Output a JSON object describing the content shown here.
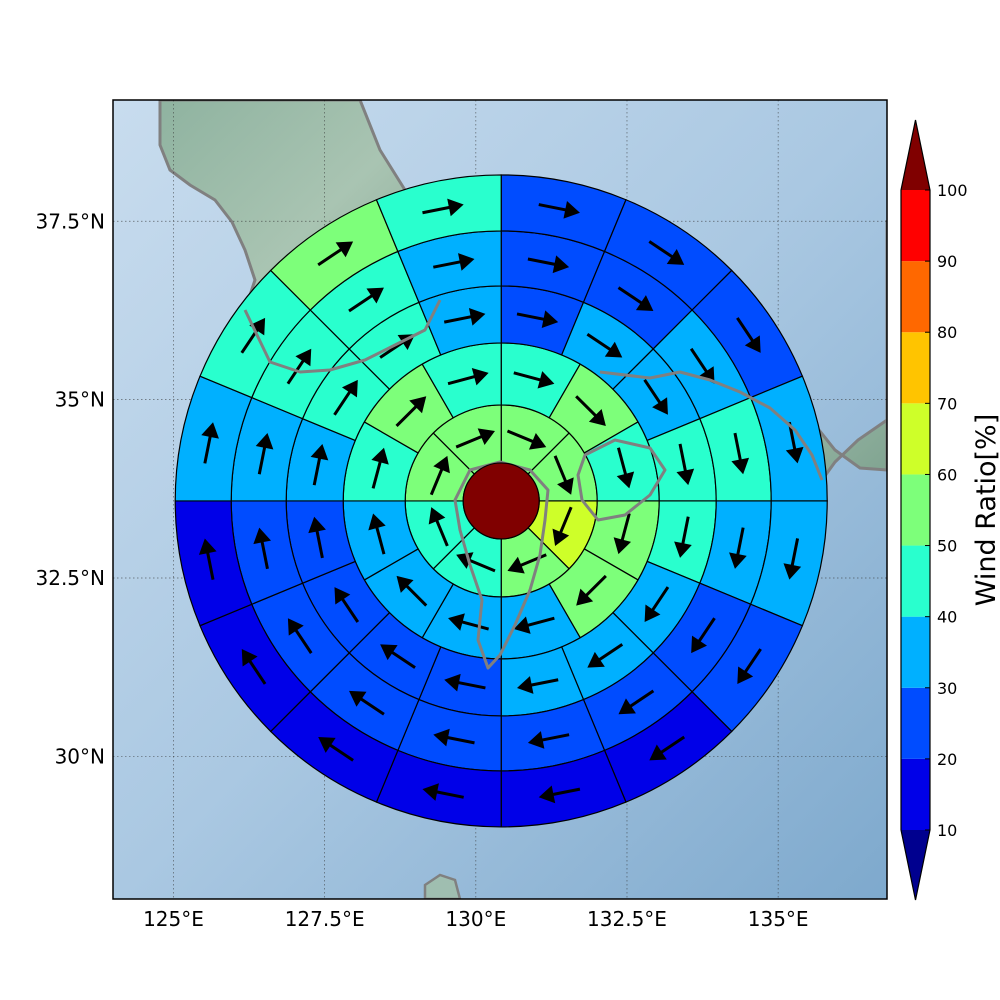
{
  "chart_data": {
    "type": "polar-sector-map",
    "map": {
      "lon_range": [
        124.0,
        136.8
      ],
      "lat_range": [
        28.0,
        39.2
      ],
      "x_ticks": [
        125.0,
        127.5,
        130.0,
        132.5,
        135.0
      ],
      "x_tick_labels": [
        "125°E",
        "127.5°E",
        "130°E",
        "132.5°E",
        "135°E"
      ],
      "y_ticks": [
        30.0,
        32.5,
        35.0,
        37.5
      ],
      "y_tick_labels": [
        "30°N",
        "32.5°N",
        "35°N",
        "37.5°N"
      ],
      "grid": true,
      "colors": {
        "sea": "#a9c9e2",
        "land": "#93b8a4",
        "coast": "#808080"
      }
    },
    "polar": {
      "center": [
        130.42,
        33.58
      ],
      "center_value": 100,
      "rings": [
        {
          "sectors": [
            {
              "deg": 0,
              "v": 50
            },
            {
              "deg": 45,
              "v": 50
            },
            {
              "deg": 90,
              "v": 60
            },
            {
              "deg": 135,
              "v": 50
            },
            {
              "deg": 180,
              "v": 40
            },
            {
              "deg": 225,
              "v": 40
            },
            {
              "deg": 270,
              "v": 50
            },
            {
              "deg": 315,
              "v": 50
            }
          ]
        },
        {
          "sectors": [
            {
              "deg": 0,
              "v": 40
            },
            {
              "deg": 30,
              "v": 50
            },
            {
              "deg": 60,
              "v": 40
            },
            {
              "deg": 90,
              "v": 50
            },
            {
              "deg": 120,
              "v": 50
            },
            {
              "deg": 150,
              "v": 30
            },
            {
              "deg": 180,
              "v": 30
            },
            {
              "deg": 210,
              "v": 30
            },
            {
              "deg": 240,
              "v": 30
            },
            {
              "deg": 270,
              "v": 40
            },
            {
              "deg": 300,
              "v": 50
            },
            {
              "deg": 330,
              "v": 40
            }
          ]
        },
        {
          "sectors": [
            {
              "deg": 0,
              "v": 20
            },
            {
              "deg": 22.5,
              "v": 30
            },
            {
              "deg": 45,
              "v": 30
            },
            {
              "deg": 67.5,
              "v": 40
            },
            {
              "deg": 90,
              "v": 40
            },
            {
              "deg": 112.5,
              "v": 30
            },
            {
              "deg": 135,
              "v": 30
            },
            {
              "deg": 157.5,
              "v": 30
            },
            {
              "deg": 180,
              "v": 20
            },
            {
              "deg": 202.5,
              "v": 20
            },
            {
              "deg": 225,
              "v": 20
            },
            {
              "deg": 247.5,
              "v": 20
            },
            {
              "deg": 270,
              "v": 30
            },
            {
              "deg": 292.5,
              "v": 40
            },
            {
              "deg": 315,
              "v": 40
            },
            {
              "deg": 337.5,
              "v": 30
            }
          ]
        },
        {
          "sectors": [
            {
              "deg": 0,
              "v": 20
            },
            {
              "deg": 22.5,
              "v": 20
            },
            {
              "deg": 45,
              "v": 30
            },
            {
              "deg": 67.5,
              "v": 40
            },
            {
              "deg": 90,
              "v": 30
            },
            {
              "deg": 112.5,
              "v": 20
            },
            {
              "deg": 135,
              "v": 20
            },
            {
              "deg": 157.5,
              "v": 20
            },
            {
              "deg": 180,
              "v": 20
            },
            {
              "deg": 202.5,
              "v": 20
            },
            {
              "deg": 225,
              "v": 20
            },
            {
              "deg": 247.5,
              "v": 20
            },
            {
              "deg": 270,
              "v": 30
            },
            {
              "deg": 292.5,
              "v": 40
            },
            {
              "deg": 315,
              "v": 40
            },
            {
              "deg": 337.5,
              "v": 30
            }
          ]
        },
        {
          "sectors": [
            {
              "deg": 0,
              "v": 20
            },
            {
              "deg": 22.5,
              "v": 20
            },
            {
              "deg": 45,
              "v": 20
            },
            {
              "deg": 67.5,
              "v": 30
            },
            {
              "deg": 90,
              "v": 30
            },
            {
              "deg": 112.5,
              "v": 20
            },
            {
              "deg": 135,
              "v": 10
            },
            {
              "deg": 157.5,
              "v": 10
            },
            {
              "deg": 180,
              "v": 10
            },
            {
              "deg": 202.5,
              "v": 10
            },
            {
              "deg": 225,
              "v": 10
            },
            {
              "deg": 247.5,
              "v": 10
            },
            {
              "deg": 270,
              "v": 30
            },
            {
              "deg": 292.5,
              "v": 40
            },
            {
              "deg": 315,
              "v": 50
            },
            {
              "deg": 337.5,
              "v": 40
            }
          ]
        }
      ]
    },
    "colorbar": {
      "label": "Wind Ratio[%]",
      "levels": [
        10,
        20,
        30,
        40,
        50,
        60,
        70,
        80,
        90,
        100
      ],
      "tick_labels": [
        "10",
        "20",
        "30",
        "40",
        "50",
        "60",
        "70",
        "80",
        "90",
        "100"
      ],
      "colors": [
        "#0000e8",
        "#004cff",
        "#00b0ff",
        "#29ffce",
        "#7dff7a",
        "#ceff29",
        "#ffc400",
        "#ff6800",
        "#ff0000"
      ],
      "under_color": "#00008f",
      "over_color": "#800000"
    }
  }
}
